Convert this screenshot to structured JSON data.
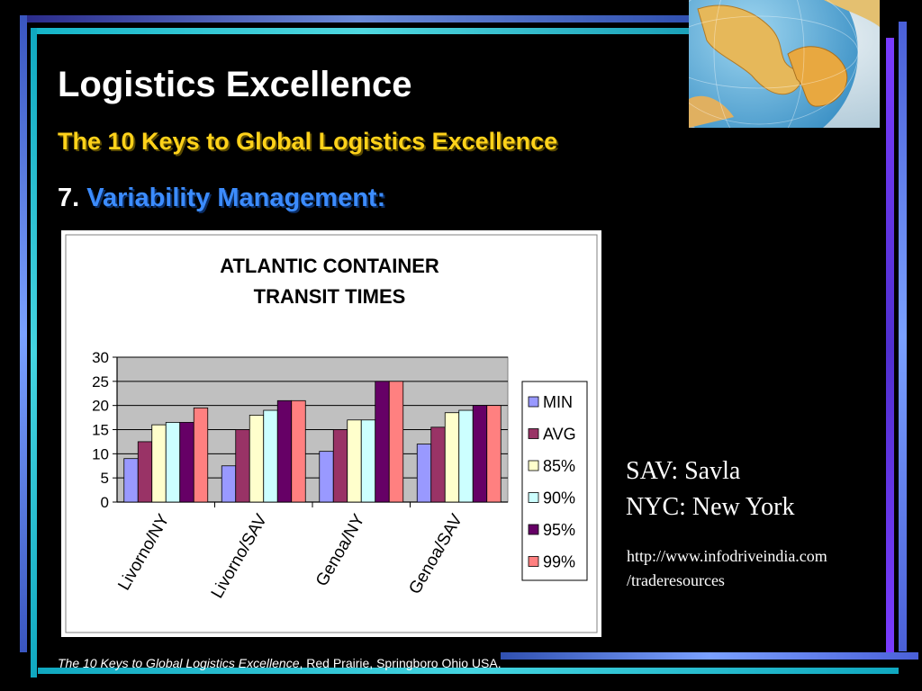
{
  "slide": {
    "title": "Logistics Excellence",
    "subtitle": "The 10 Keys to Global Logistics Excellence",
    "key_number": "7.",
    "key_text": "Variability Management:",
    "notes": [
      "SAV: Savla",
      "NYC: New York"
    ],
    "url_lines": [
      "http://www.infodriveindia.com",
      "/traderesources"
    ],
    "footer_italic": "The 10 Keys to Global Logistics Excellence",
    "footer_rest": ", Red Prairie, Springboro Ohio USA.",
    "globe_icon": "globe-image"
  },
  "chart_data": {
    "type": "bar",
    "title": "ATLANTIC CONTAINER TRANSIT TIMES",
    "title_lines": [
      "ATLANTIC CONTAINER",
      "TRANSIT TIMES"
    ],
    "categories": [
      "Livorno/NY",
      "Livorno/SAV",
      "Genoa/NY",
      "Genoa/SAV"
    ],
    "series": [
      {
        "name": "MIN",
        "color": "#9999ff",
        "values": [
          9,
          7.5,
          10.5,
          12
        ]
      },
      {
        "name": "AVG",
        "color": "#993366",
        "values": [
          12.5,
          15,
          15,
          15.5
        ]
      },
      {
        "name": "85%",
        "color": "#ffffcc",
        "values": [
          16,
          18,
          17,
          18.5
        ]
      },
      {
        "name": "90%",
        "color": "#ccffff",
        "values": [
          16.5,
          19,
          17,
          19
        ]
      },
      {
        "name": "95%",
        "color": "#660066",
        "values": [
          16.5,
          21,
          25,
          20
        ]
      },
      {
        "name": "99%",
        "color": "#ff8080",
        "values": [
          19.5,
          21,
          25,
          20
        ]
      }
    ],
    "ylim": [
      0,
      30
    ],
    "yticks": [
      0,
      5,
      10,
      15,
      20,
      25,
      30
    ],
    "grid": true,
    "plot_background": "#c0c0c0",
    "legend": "right"
  }
}
